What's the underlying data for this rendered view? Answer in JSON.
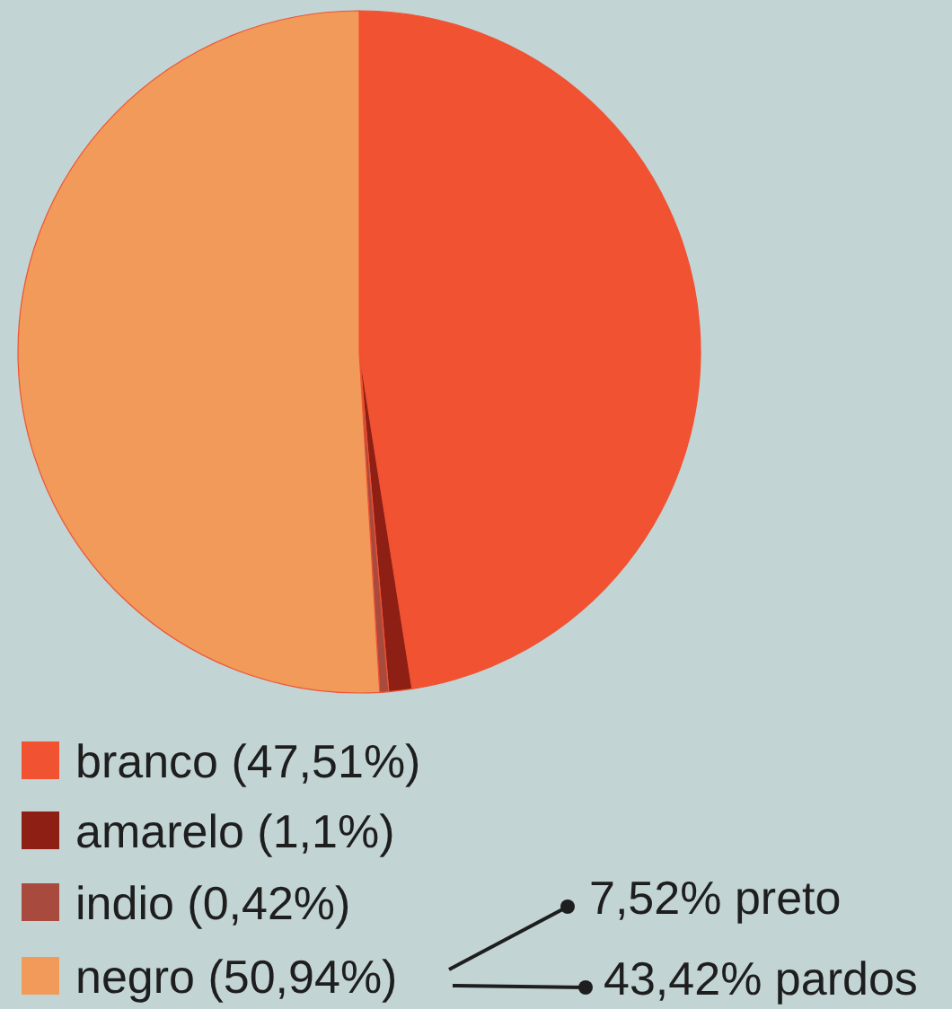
{
  "chart_data": {
    "type": "pie",
    "categories": [
      "branco (47,51%)",
      "amarelo (1,1%)",
      "indio (0,42%)",
      "negro (50,94%)"
    ],
    "values": [
      47.51,
      1.1,
      0.42,
      50.94
    ],
    "colors": [
      "#f05232",
      "#8e1f14",
      "#a84a3e",
      "#f29a5a"
    ],
    "legend": "bottom left",
    "annotations": [
      "7,52% preto",
      "43,42% pardos"
    ]
  }
}
